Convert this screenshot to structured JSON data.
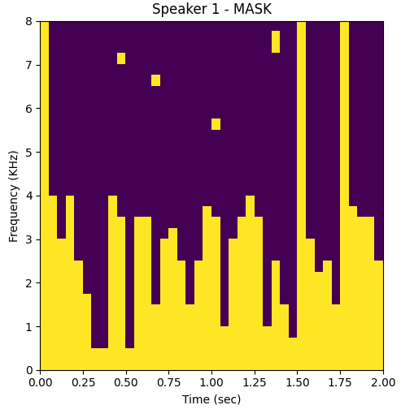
{
  "chart_data": {
    "type": "heatmap",
    "title": "Speaker 1 - MASK",
    "x_label": "Time (sec)",
    "y_label": "Frequency (KHz)",
    "xlim": [
      0,
      2
    ],
    "ylim": [
      0,
      8
    ],
    "xticks": [
      {
        "value": 0,
        "label": "0.00"
      },
      {
        "value": 0.25,
        "label": "0.25"
      },
      {
        "value": 0.5,
        "label": "0.50"
      },
      {
        "value": 0.75,
        "label": "0.75"
      },
      {
        "value": 1,
        "label": "1.00"
      },
      {
        "value": 1.25,
        "label": "1.25"
      },
      {
        "value": 1.5,
        "label": "1.50"
      },
      {
        "value": 1.75,
        "label": "1.75"
      },
      {
        "value": 2,
        "label": "2.00"
      }
    ],
    "yticks": [
      0,
      1,
      2,
      3,
      4,
      5,
      6,
      7,
      8
    ],
    "colors": [
      "#440154",
      "#fde725"
    ],
    "cells": [
      [
        1,
        1,
        1,
        1,
        1,
        1,
        1,
        1,
        1,
        1,
        1,
        1,
        1,
        1,
        1,
        1,
        1,
        1,
        1,
        1,
        1,
        1,
        1,
        1,
        1,
        1,
        1,
        1,
        1,
        1,
        1,
        1,
        1,
        1,
        1,
        1,
        1,
        1,
        1,
        1
      ],
      [
        1,
        1,
        1,
        1,
        1,
        1,
        1,
        1,
        1,
        1,
        1,
        1,
        1,
        1,
        1,
        1,
        1,
        1,
        1,
        1,
        1,
        1,
        1,
        1,
        1,
        1,
        1,
        1,
        1,
        1,
        1,
        1,
        1,
        1,
        1,
        1,
        1,
        1,
        1,
        1
      ],
      [
        1,
        1,
        1,
        1,
        1,
        1,
        0,
        0,
        1,
        1,
        0,
        1,
        1,
        1,
        1,
        1,
        1,
        1,
        1,
        1,
        1,
        1,
        1,
        1,
        1,
        1,
        1,
        1,
        1,
        1,
        1,
        1,
        1,
        1,
        1,
        1,
        1,
        1,
        1,
        1
      ],
      [
        1,
        1,
        1,
        1,
        1,
        1,
        0,
        0,
        1,
        1,
        0,
        1,
        1,
        1,
        1,
        1,
        1,
        1,
        1,
        1,
        1,
        1,
        1,
        1,
        1,
        1,
        1,
        1,
        1,
        0,
        1,
        1,
        1,
        1,
        1,
        1,
        1,
        1,
        1,
        1
      ],
      [
        1,
        1,
        1,
        1,
        1,
        1,
        0,
        0,
        1,
        1,
        0,
        1,
        1,
        1,
        1,
        1,
        1,
        1,
        1,
        1,
        1,
        0,
        1,
        1,
        1,
        1,
        0,
        1,
        1,
        0,
        1,
        1,
        1,
        1,
        1,
        1,
        1,
        1,
        1,
        1
      ],
      [
        1,
        1,
        1,
        1,
        1,
        1,
        0,
        0,
        1,
        1,
        0,
        1,
        1,
        1,
        1,
        1,
        1,
        1,
        1,
        1,
        1,
        0,
        1,
        1,
        1,
        1,
        0,
        1,
        1,
        0,
        1,
        1,
        1,
        1,
        1,
        1,
        1,
        1,
        1,
        1
      ],
      [
        1,
        1,
        1,
        1,
        1,
        1,
        0,
        0,
        1,
        1,
        0,
        1,
        1,
        0,
        1,
        1,
        1,
        0,
        1,
        1,
        1,
        0,
        1,
        1,
        1,
        1,
        0,
        1,
        0,
        0,
        1,
        1,
        1,
        1,
        0,
        1,
        1,
        1,
        1,
        1
      ],
      [
        1,
        1,
        1,
        1,
        1,
        0,
        0,
        0,
        1,
        1,
        0,
        1,
        1,
        0,
        1,
        1,
        1,
        0,
        1,
        1,
        1,
        0,
        1,
        1,
        1,
        1,
        0,
        1,
        0,
        0,
        1,
        1,
        1,
        1,
        0,
        1,
        1,
        1,
        1,
        1
      ],
      [
        1,
        1,
        1,
        1,
        1,
        0,
        0,
        0,
        1,
        1,
        0,
        1,
        1,
        0,
        1,
        1,
        1,
        0,
        1,
        1,
        1,
        0,
        1,
        1,
        1,
        1,
        0,
        1,
        0,
        0,
        1,
        1,
        1,
        1,
        0,
        1,
        1,
        1,
        1,
        1
      ],
      [
        1,
        1,
        1,
        1,
        1,
        0,
        0,
        0,
        1,
        1,
        0,
        1,
        1,
        0,
        1,
        1,
        1,
        0,
        1,
        1,
        1,
        0,
        1,
        1,
        1,
        1,
        0,
        1,
        0,
        0,
        1,
        1,
        0,
        1,
        0,
        1,
        1,
        1,
        1,
        1
      ],
      [
        1,
        1,
        1,
        1,
        0,
        0,
        0,
        0,
        1,
        1,
        0,
        1,
        1,
        0,
        1,
        1,
        0,
        0,
        0,
        1,
        1,
        0,
        1,
        1,
        1,
        1,
        0,
        0,
        0,
        0,
        1,
        1,
        0,
        0,
        0,
        1,
        1,
        1,
        1,
        0
      ],
      [
        1,
        1,
        1,
        1,
        0,
        0,
        0,
        0,
        1,
        1,
        0,
        1,
        1,
        0,
        1,
        1,
        0,
        0,
        0,
        1,
        1,
        0,
        1,
        1,
        1,
        1,
        0,
        0,
        0,
        0,
        1,
        1,
        0,
        0,
        0,
        1,
        1,
        1,
        1,
        0
      ],
      [
        1,
        1,
        0,
        1,
        0,
        0,
        0,
        0,
        1,
        1,
        0,
        1,
        1,
        0,
        0,
        1,
        0,
        0,
        0,
        1,
        1,
        0,
        0,
        1,
        1,
        1,
        0,
        0,
        0,
        0,
        1,
        0,
        0,
        0,
        0,
        1,
        1,
        1,
        1,
        0
      ],
      [
        1,
        1,
        0,
        1,
        0,
        0,
        0,
        0,
        1,
        1,
        0,
        1,
        1,
        0,
        0,
        0,
        0,
        0,
        0,
        1,
        1,
        0,
        0,
        1,
        1,
        1,
        0,
        0,
        0,
        0,
        1,
        0,
        0,
        0,
        0,
        1,
        1,
        1,
        1,
        0
      ],
      [
        1,
        1,
        0,
        1,
        0,
        0,
        0,
        0,
        1,
        0,
        0,
        0,
        0,
        0,
        0,
        0,
        0,
        0,
        0,
        1,
        0,
        0,
        0,
        0,
        1,
        0,
        0,
        0,
        0,
        0,
        1,
        0,
        0,
        0,
        0,
        1,
        1,
        0,
        0,
        0
      ],
      [
        1,
        1,
        0,
        1,
        0,
        0,
        0,
        0,
        1,
        0,
        0,
        0,
        0,
        0,
        0,
        0,
        0,
        0,
        0,
        0,
        0,
        0,
        0,
        0,
        1,
        0,
        0,
        0,
        0,
        0,
        1,
        0,
        0,
        0,
        0,
        1,
        0,
        0,
        0,
        0
      ],
      [
        1,
        0,
        0,
        0,
        0,
        0,
        0,
        0,
        0,
        0,
        0,
        0,
        0,
        0,
        0,
        0,
        0,
        0,
        0,
        0,
        0,
        0,
        0,
        0,
        0,
        0,
        0,
        0,
        0,
        0,
        1,
        0,
        0,
        0,
        0,
        1,
        0,
        0,
        0,
        0
      ],
      [
        1,
        0,
        0,
        0,
        0,
        0,
        0,
        0,
        0,
        0,
        0,
        0,
        0,
        0,
        0,
        0,
        0,
        0,
        0,
        0,
        0,
        0,
        0,
        0,
        0,
        0,
        0,
        0,
        0,
        0,
        1,
        0,
        0,
        0,
        0,
        1,
        0,
        0,
        0,
        0
      ],
      [
        1,
        0,
        0,
        0,
        0,
        0,
        0,
        0,
        0,
        0,
        0,
        0,
        0,
        0,
        0,
        0,
        0,
        0,
        0,
        0,
        0,
        0,
        0,
        0,
        0,
        0,
        0,
        0,
        0,
        0,
        1,
        0,
        0,
        0,
        0,
        1,
        0,
        0,
        0,
        0
      ],
      [
        1,
        0,
        0,
        0,
        0,
        0,
        0,
        0,
        0,
        0,
        0,
        0,
        0,
        0,
        0,
        0,
        0,
        0,
        0,
        0,
        0,
        0,
        0,
        0,
        0,
        0,
        0,
        0,
        0,
        0,
        1,
        0,
        0,
        0,
        0,
        1,
        0,
        0,
        0,
        0
      ],
      [
        1,
        0,
        0,
        0,
        0,
        0,
        0,
        0,
        0,
        0,
        0,
        0,
        0,
        0,
        0,
        0,
        0,
        0,
        0,
        0,
        0,
        0,
        0,
        0,
        0,
        0,
        0,
        0,
        0,
        0,
        1,
        0,
        0,
        0,
        0,
        1,
        0,
        0,
        0,
        0
      ],
      [
        1,
        0,
        0,
        0,
        0,
        0,
        0,
        0,
        0,
        0,
        0,
        0,
        0,
        0,
        0,
        0,
        0,
        0,
        0,
        0,
        0,
        0,
        0,
        0,
        0,
        0,
        0,
        0,
        0,
        0,
        1,
        0,
        0,
        0,
        0,
        1,
        0,
        0,
        0,
        0
      ],
      [
        1,
        0,
        0,
        0,
        0,
        0,
        0,
        0,
        0,
        0,
        0,
        0,
        0,
        0,
        0,
        0,
        0,
        0,
        0,
        0,
        1,
        0,
        0,
        0,
        0,
        0,
        0,
        0,
        0,
        0,
        1,
        0,
        0,
        0,
        0,
        1,
        0,
        0,
        0,
        0
      ],
      [
        1,
        0,
        0,
        0,
        0,
        0,
        0,
        0,
        0,
        0,
        0,
        0,
        0,
        0,
        0,
        0,
        0,
        0,
        0,
        0,
        0,
        0,
        0,
        0,
        0,
        0,
        0,
        0,
        0,
        0,
        1,
        0,
        0,
        0,
        0,
        1,
        0,
        0,
        0,
        0
      ],
      [
        1,
        0,
        0,
        0,
        0,
        0,
        0,
        0,
        0,
        0,
        0,
        0,
        0,
        0,
        0,
        0,
        0,
        0,
        0,
        0,
        0,
        0,
        0,
        0,
        0,
        0,
        0,
        0,
        0,
        0,
        1,
        0,
        0,
        0,
        0,
        1,
        0,
        0,
        0,
        0
      ],
      [
        1,
        0,
        0,
        0,
        0,
        0,
        0,
        0,
        0,
        0,
        0,
        0,
        0,
        0,
        0,
        0,
        0,
        0,
        0,
        0,
        0,
        0,
        0,
        0,
        0,
        0,
        0,
        0,
        0,
        0,
        1,
        0,
        0,
        0,
        0,
        1,
        0,
        0,
        0,
        0
      ],
      [
        1,
        0,
        0,
        0,
        0,
        0,
        0,
        0,
        0,
        0,
        0,
        0,
        0,
        1,
        0,
        0,
        0,
        0,
        0,
        0,
        0,
        0,
        0,
        0,
        0,
        0,
        0,
        0,
        0,
        0,
        1,
        0,
        0,
        0,
        0,
        1,
        0,
        0,
        0,
        0
      ],
      [
        1,
        0,
        0,
        0,
        0,
        0,
        0,
        0,
        0,
        0,
        0,
        0,
        0,
        0,
        0,
        0,
        0,
        0,
        0,
        0,
        0,
        0,
        0,
        0,
        0,
        0,
        0,
        0,
        0,
        0,
        1,
        0,
        0,
        0,
        0,
        1,
        0,
        0,
        0,
        0
      ],
      [
        1,
        0,
        0,
        0,
        0,
        0,
        0,
        0,
        0,
        1,
        0,
        0,
        0,
        0,
        0,
        0,
        0,
        0,
        0,
        0,
        0,
        0,
        0,
        0,
        0,
        0,
        0,
        0,
        0,
        0,
        1,
        0,
        0,
        0,
        0,
        1,
        0,
        0,
        0,
        0
      ],
      [
        1,
        0,
        0,
        0,
        0,
        0,
        0,
        0,
        0,
        0,
        0,
        0,
        0,
        0,
        0,
        0,
        0,
        0,
        0,
        0,
        0,
        0,
        0,
        0,
        0,
        0,
        0,
        1,
        0,
        0,
        1,
        0,
        0,
        0,
        0,
        1,
        0,
        0,
        0,
        0
      ],
      [
        1,
        0,
        0,
        0,
        0,
        0,
        0,
        0,
        0,
        0,
        0,
        0,
        0,
        0,
        0,
        0,
        0,
        0,
        0,
        0,
        0,
        0,
        0,
        0,
        0,
        0,
        0,
        1,
        0,
        0,
        1,
        0,
        0,
        0,
        0,
        1,
        0,
        0,
        0,
        0
      ],
      [
        1,
        0,
        0,
        0,
        0,
        0,
        0,
        0,
        0,
        0,
        0,
        0,
        0,
        0,
        0,
        0,
        0,
        0,
        0,
        0,
        0,
        0,
        0,
        0,
        0,
        0,
        0,
        0,
        0,
        0,
        1,
        0,
        0,
        0,
        0,
        1,
        0,
        0,
        0,
        0
      ]
    ]
  }
}
